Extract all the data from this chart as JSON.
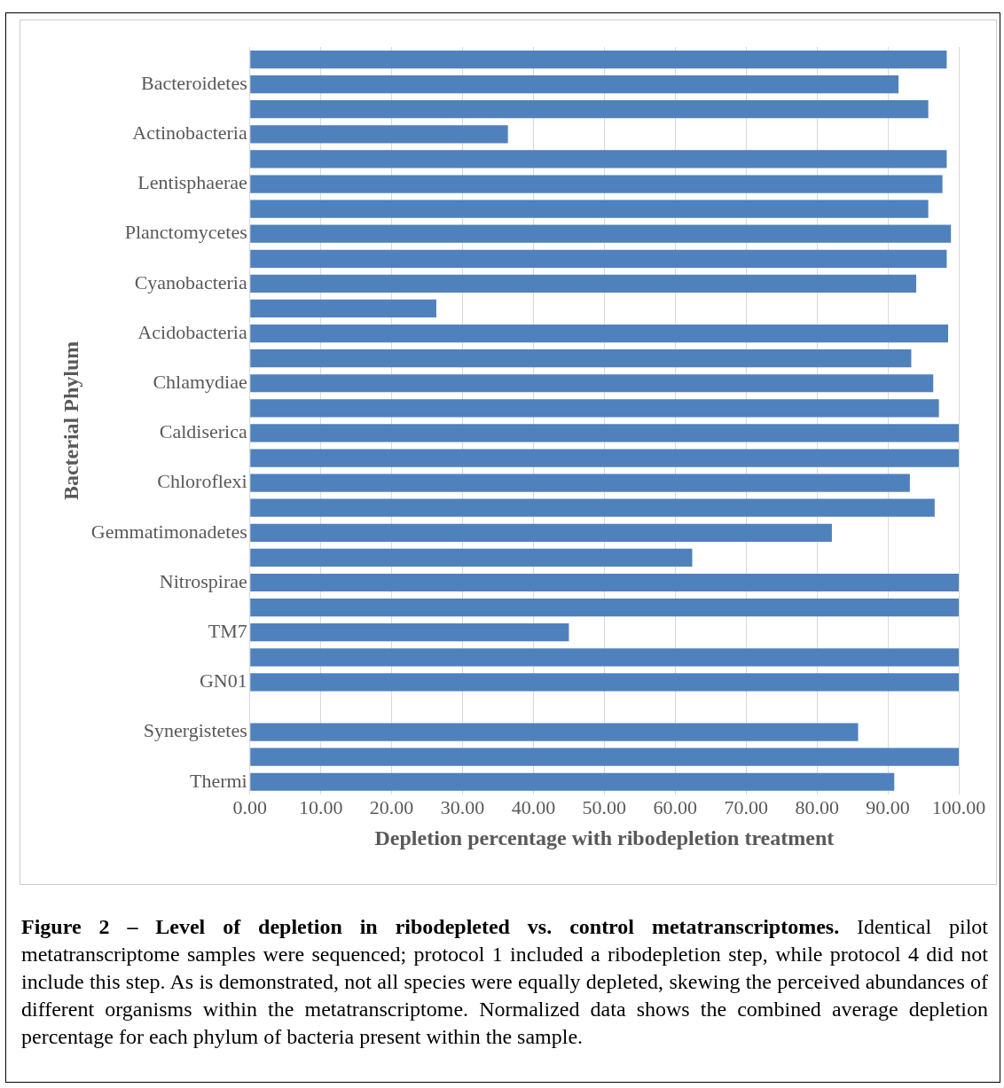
{
  "chart_data": {
    "type": "bar",
    "orientation": "horizontal",
    "xlabel": "Depletion percentage with ribodepletion treatment",
    "ylabel": "Bacterial Phylum",
    "categories": [
      null,
      "Bacteroidetes",
      null,
      "Actinobacteria",
      null,
      "Lentisphaerae",
      null,
      "Planctomycetes",
      null,
      "Cyanobacteria",
      null,
      "Acidobacteria",
      null,
      "Chlamydiae",
      null,
      "Caldiserica",
      null,
      "Chloroflexi",
      null,
      "Gemmatimonadetes",
      null,
      "Nitrospirae",
      null,
      "TM7",
      null,
      "GN01",
      null,
      "Synergistetes",
      null,
      "Thermi"
    ],
    "values": [
      98.3,
      91.5,
      95.7,
      36.4,
      98.3,
      97.7,
      95.7,
      98.9,
      98.3,
      94.0,
      26.3,
      98.5,
      93.3,
      96.4,
      97.2,
      100,
      100,
      93.1,
      96.6,
      82.1,
      62.4,
      100,
      100,
      45.0,
      100,
      100,
      null,
      85.8,
      100,
      90.9
    ],
    "color": "#4f81bd",
    "xlim": [
      0,
      100
    ],
    "xticks": [
      {
        "value": 0,
        "label": "0.00"
      },
      {
        "value": 10,
        "label": "10.00"
      },
      {
        "value": 20,
        "label": "20.00"
      },
      {
        "value": 30,
        "label": "30.00"
      },
      {
        "value": 40,
        "label": "40.00"
      },
      {
        "value": 50,
        "label": "50.00"
      },
      {
        "value": 60,
        "label": "60.00"
      },
      {
        "value": 70,
        "label": "70.00"
      },
      {
        "value": 80,
        "label": "80.00"
      },
      {
        "value": 90,
        "label": "90.00"
      },
      {
        "value": 100,
        "label": "100.00"
      }
    ],
    "grid": "x",
    "legend": false,
    "annotations": [
      "Figure 2 – Level of depletion in ribodepleted vs. control metatranscriptomes.",
      "Identical pilot metatranscriptome samples were sequenced; protocol 1 included a ribodepletion step, while protocol 4 did not include this step. As is demonstrated, not all species were equally depleted, skewing the perceived abundances of different organisms within the metatranscriptome. Normalized data shows the combined average depletion percentage for each phylum of bacteria present within the sample."
    ]
  }
}
